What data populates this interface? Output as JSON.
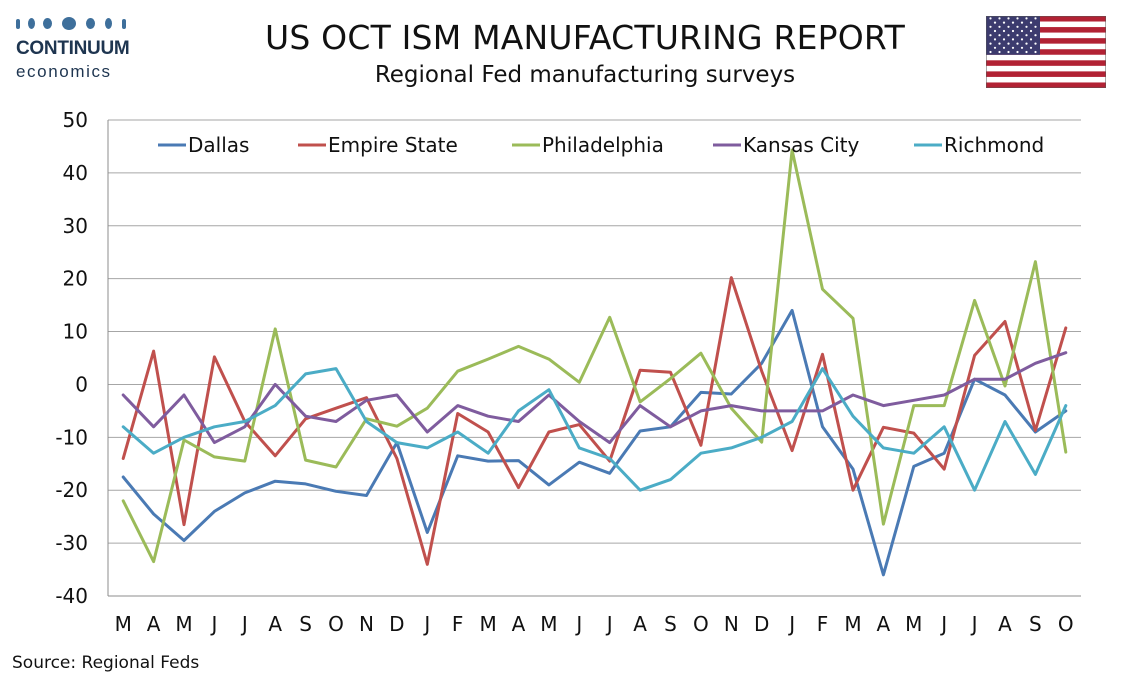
{
  "logo": {
    "name": "CONTINUUM",
    "sub": "economics"
  },
  "title": "US OCT ISM MANUFACTURING REPORT",
  "subtitle": "Regional Fed manufacturing surveys",
  "flag": {
    "icon": "us-flag-icon"
  },
  "source": "Source: Regional Feds",
  "chart_data": {
    "type": "line",
    "categories": [
      "M",
      "A",
      "M",
      "J",
      "J",
      "A",
      "S",
      "O",
      "N",
      "D",
      "J",
      "F",
      "M",
      "A",
      "M",
      "J",
      "J",
      "A",
      "S",
      "O",
      "N",
      "D",
      "J",
      "F",
      "M",
      "A",
      "M",
      "J",
      "J",
      "A",
      "S",
      "O"
    ],
    "ylim": [
      -40,
      50
    ],
    "yticks": [
      -40,
      -30,
      -20,
      -10,
      0,
      10,
      20,
      30,
      40,
      50
    ],
    "grid": true,
    "legend_position": "top",
    "series": [
      {
        "name": "Dallas",
        "color": "#4a7ab4",
        "values": [
          -17.5,
          -24.5,
          -29.5,
          -24,
          -20.5,
          -18.3,
          -18.8,
          -20.2,
          -21,
          -11,
          -28,
          -13.5,
          -14.5,
          -14.4,
          -19,
          -14.7,
          -16.8,
          -8.8,
          -8,
          -1.5,
          -1.8,
          4,
          14,
          -8,
          -16,
          -36,
          -15.5,
          -13,
          1,
          -2,
          -9,
          -5
        ]
      },
      {
        "name": "Empire State",
        "color": "#c0504d",
        "values": [
          -14,
          6.3,
          -26.5,
          5.2,
          -7,
          -13.5,
          -6.5,
          -4.5,
          -2.5,
          -14,
          -34,
          -5.5,
          -9,
          -19.5,
          -9,
          -7.6,
          -14.5,
          2.7,
          2.3,
          -11.5,
          20.2,
          2.5,
          -12.5,
          5.7,
          -20,
          -8.1,
          -9.2,
          -16,
          5.5,
          11.9,
          -8.7,
          10.7
        ]
      },
      {
        "name": "Philadelphia",
        "color": "#9bbb59",
        "values": [
          -22,
          -33.5,
          -10.5,
          -13.7,
          -14.5,
          10.5,
          -14.3,
          -15.6,
          -6.5,
          -7.9,
          -4.5,
          2.5,
          4.8,
          7.2,
          4.8,
          0.4,
          12.7,
          -3.3,
          1.1,
          5.9,
          -4.5,
          -10.9,
          44.3,
          18,
          12.5,
          -26.4,
          -4,
          -4,
          15.9,
          -0.3,
          23.2,
          -12.8
        ]
      },
      {
        "name": "Kansas City",
        "color": "#7f5c9e",
        "values": [
          -2,
          -8,
          -2,
          -11,
          -8,
          0,
          -6,
          -7,
          -3,
          -2,
          -9,
          -4,
          -6,
          -7,
          -2,
          -7,
          -11,
          -4,
          -8,
          -5,
          -4,
          -5,
          -5,
          -5,
          -2,
          -4,
          -3,
          -2,
          1,
          1,
          4,
          6
        ]
      },
      {
        "name": "Richmond",
        "color": "#4bacc6",
        "values": [
          -8,
          -13,
          -10,
          -8,
          -7,
          -4,
          2,
          3,
          -7,
          -11,
          -12,
          -9,
          -13,
          -5,
          -1,
          -12,
          -14,
          -20,
          -18,
          -13,
          -12,
          -10,
          -7,
          3,
          -6,
          -12,
          -13,
          -8,
          -20,
          -7,
          -17,
          -4
        ]
      }
    ]
  }
}
